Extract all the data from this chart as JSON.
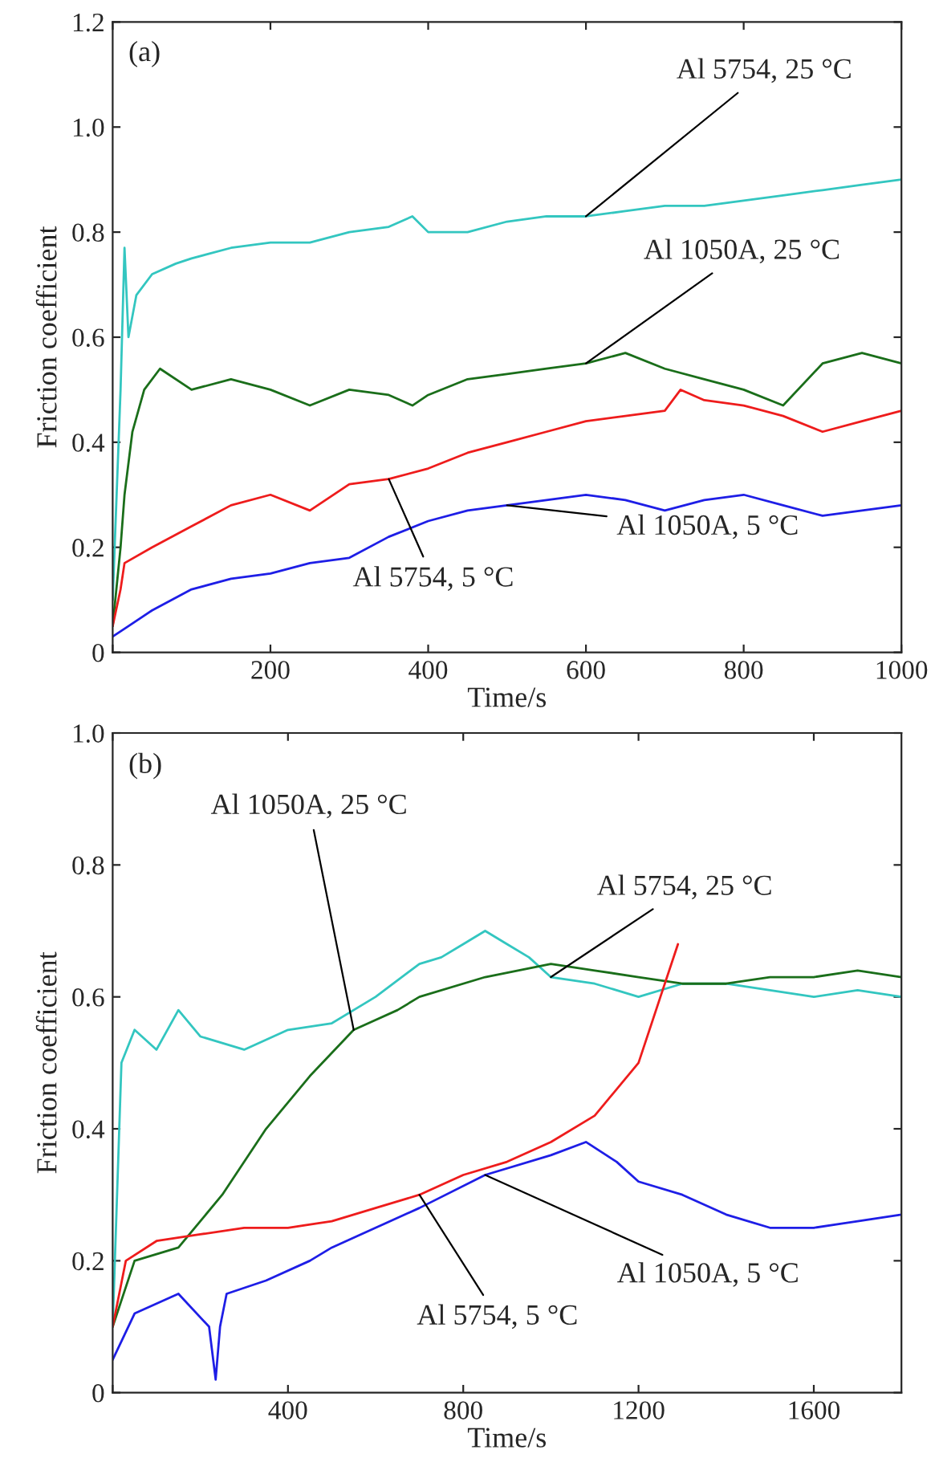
{
  "chart_data": [
    {
      "type": "line",
      "title": "(a)",
      "xlabel": "Time/s",
      "ylabel": "Friction coefficient",
      "xlim": [
        0,
        1000
      ],
      "ylim": [
        0,
        1.2
      ],
      "xticks": [
        {
          "value": 0,
          "label": null
        },
        200,
        400,
        600,
        800,
        1000
      ],
      "yticks": [
        0,
        0.2,
        0.4,
        0.6,
        0.8,
        {
          "value": 1.0,
          "label": "1.0"
        },
        1.2
      ],
      "grid": false,
      "legend": false,
      "series": [
        {
          "color": "#33c6c0",
          "x": [
            0,
            10,
            15,
            20,
            30,
            50,
            80,
            100,
            150,
            200,
            250,
            300,
            350,
            380,
            400,
            450,
            500,
            550,
            600,
            650,
            700,
            750,
            800,
            850,
            900,
            950,
            1000
          ],
          "values": [
            0.1,
            0.5,
            0.77,
            0.6,
            0.68,
            0.72,
            0.74,
            0.75,
            0.77,
            0.78,
            0.78,
            0.8,
            0.81,
            0.83,
            0.8,
            0.8,
            0.82,
            0.83,
            0.83,
            0.84,
            0.85,
            0.85,
            0.86,
            0.87,
            0.88,
            0.89,
            0.9
          ]
        },
        {
          "color": "#1a6e1a",
          "x": [
            0,
            10,
            15,
            25,
            40,
            60,
            100,
            150,
            200,
            250,
            300,
            350,
            380,
            400,
            450,
            500,
            550,
            600,
            650,
            700,
            750,
            800,
            850,
            900,
            950,
            1000
          ],
          "values": [
            0.05,
            0.2,
            0.3,
            0.42,
            0.5,
            0.54,
            0.5,
            0.52,
            0.5,
            0.47,
            0.5,
            0.49,
            0.47,
            0.49,
            0.52,
            0.53,
            0.54,
            0.55,
            0.57,
            0.54,
            0.52,
            0.5,
            0.47,
            0.55,
            0.57,
            0.55
          ]
        },
        {
          "color": "#ee1c1c",
          "x": [
            0,
            10,
            15,
            50,
            100,
            150,
            200,
            250,
            300,
            350,
            400,
            450,
            500,
            550,
            600,
            650,
            700,
            720,
            750,
            800,
            850,
            900,
            950,
            1000
          ],
          "values": [
            0.05,
            0.12,
            0.17,
            0.2,
            0.24,
            0.28,
            0.3,
            0.27,
            0.32,
            0.33,
            0.35,
            0.38,
            0.4,
            0.42,
            0.44,
            0.45,
            0.46,
            0.5,
            0.48,
            0.47,
            0.45,
            0.42,
            0.44,
            0.46
          ]
        },
        {
          "color": "#1e1ee6",
          "x": [
            0,
            20,
            50,
            100,
            150,
            200,
            250,
            300,
            350,
            400,
            450,
            500,
            550,
            600,
            650,
            700,
            750,
            800,
            850,
            900,
            950,
            1000
          ],
          "values": [
            0.03,
            0.05,
            0.08,
            0.12,
            0.14,
            0.15,
            0.17,
            0.18,
            0.22,
            0.25,
            0.27,
            0.28,
            0.29,
            0.3,
            0.29,
            0.27,
            0.29,
            0.3,
            0.28,
            0.26,
            0.27,
            0.28
          ]
        }
      ],
      "annotations": [
        {
          "text": "Al 5754, 25 °C",
          "x": 600,
          "y": 0.83
        },
        {
          "text": "Al 1050A, 25 °C",
          "x": 600,
          "y": 0.55
        },
        {
          "text": "Al 1050A, 5 °C",
          "x": 500,
          "y": 0.28
        },
        {
          "text": "Al 5754, 5 °C",
          "x": 350,
          "y": 0.33
        }
      ]
    },
    {
      "type": "line",
      "title": "(b)",
      "xlabel": "Time/s",
      "ylabel": "Friction coefficient",
      "xlim": [
        0,
        1800
      ],
      "ylim": [
        0,
        1.0
      ],
      "xticks": [
        {
          "value": 0,
          "label": null
        },
        400,
        800,
        1200,
        1600
      ],
      "yticks": [
        0,
        0.2,
        0.4,
        0.6,
        0.8,
        {
          "value": 1.0,
          "label": "1.0"
        }
      ],
      "grid": false,
      "legend": false,
      "series": [
        {
          "color": "#33c6c0",
          "x": [
            0,
            20,
            50,
            100,
            150,
            200,
            300,
            400,
            500,
            600,
            700,
            750,
            800,
            850,
            900,
            950,
            1000,
            1100,
            1200,
            1300,
            1400,
            1500,
            1600,
            1700,
            1800
          ],
          "values": [
            0.1,
            0.5,
            0.55,
            0.52,
            0.58,
            0.54,
            0.52,
            0.55,
            0.56,
            0.6,
            0.65,
            0.66,
            0.68,
            0.7,
            0.68,
            0.66,
            0.63,
            0.62,
            0.6,
            0.62,
            0.62,
            0.61,
            0.6,
            0.61,
            0.6
          ]
        },
        {
          "color": "#1a6e1a",
          "x": [
            0,
            50,
            150,
            250,
            350,
            450,
            550,
            650,
            700,
            850,
            1000,
            1100,
            1200,
            1300,
            1400,
            1500,
            1600,
            1700,
            1800
          ],
          "values": [
            0.1,
            0.2,
            0.22,
            0.3,
            0.4,
            0.48,
            0.55,
            0.58,
            0.6,
            0.63,
            0.65,
            0.64,
            0.63,
            0.62,
            0.62,
            0.63,
            0.63,
            0.64,
            0.63
          ]
        },
        {
          "color": "#ee1c1c",
          "x": [
            0,
            30,
            100,
            200,
            300,
            400,
            500,
            600,
            700,
            800,
            900,
            1000,
            1100,
            1200,
            1250,
            1290
          ],
          "values": [
            0.1,
            0.2,
            0.23,
            0.24,
            0.25,
            0.25,
            0.26,
            0.28,
            0.3,
            0.33,
            0.35,
            0.38,
            0.42,
            0.5,
            0.6,
            0.68
          ]
        },
        {
          "color": "#1e1ee6",
          "x": [
            0,
            50,
            150,
            220,
            235,
            245,
            260,
            350,
            450,
            500,
            600,
            700,
            850,
            1000,
            1080,
            1150,
            1200,
            1300,
            1400,
            1500,
            1600,
            1700,
            1800
          ],
          "values": [
            0.05,
            0.12,
            0.15,
            0.1,
            0.02,
            0.1,
            0.15,
            0.17,
            0.2,
            0.22,
            0.25,
            0.28,
            0.33,
            0.36,
            0.38,
            0.35,
            0.32,
            0.3,
            0.27,
            0.25,
            0.25,
            0.26,
            0.27
          ]
        }
      ],
      "annotations": [
        {
          "text": "Al 5754, 25 °C",
          "x": 1000,
          "y": 0.63
        },
        {
          "text": "Al 1050A, 25 °C",
          "x": 550,
          "y": 0.55
        },
        {
          "text": "Al 1050A, 5 °C",
          "x": 850,
          "y": 0.33
        },
        {
          "text": "Al 5754, 5 °C",
          "x": 700,
          "y": 0.3
        }
      ]
    }
  ]
}
